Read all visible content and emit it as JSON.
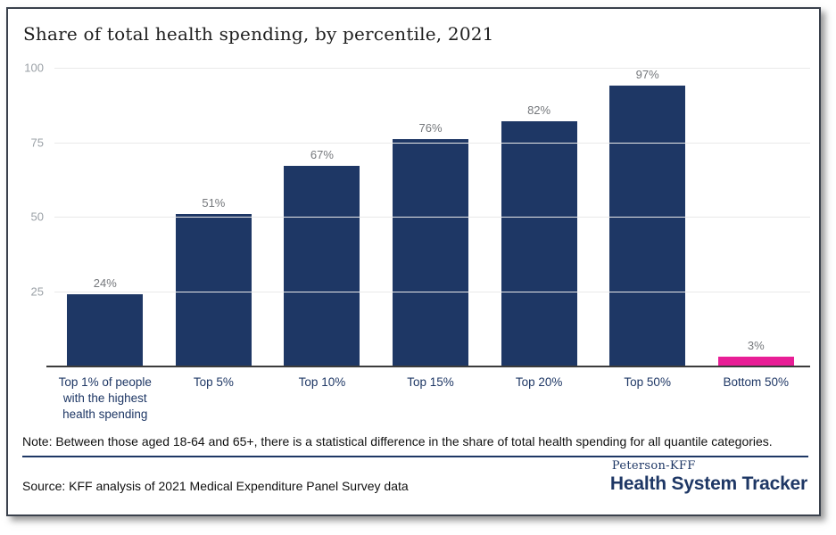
{
  "chart_data": {
    "type": "bar",
    "title": "Share of total health spending, by percentile, 2021",
    "categories": [
      "Top 1% of people with the highest health spending",
      "Top 5%",
      "Top 10%",
      "Top 15%",
      "Top 20%",
      "Top 50%",
      "Bottom 50%"
    ],
    "values": [
      24,
      51,
      67,
      76,
      82,
      97,
      3
    ],
    "value_labels": [
      "24%",
      "51%",
      "67%",
      "76%",
      "82%",
      "97%",
      "3%"
    ],
    "xlabel": "",
    "ylabel": "",
    "ylim": [
      0,
      100
    ],
    "yticks": [
      100,
      75,
      50,
      25
    ],
    "grid": "horizontal",
    "legend_position": "none",
    "bar_color_default": "#1e3765",
    "bar_color_highlight": "#e81e96",
    "highlight_index": 6
  },
  "note": "Note: Between those aged 18-64 and 65+, there is a statistical difference in the share of total health spending for all quantile categories.",
  "source": "Source: KFF analysis of 2021 Medical Expenditure Panel Survey data",
  "branding": {
    "line1": "Peterson-KFF",
    "line2": "Health System Tracker"
  },
  "colors": {
    "navy": "#1e3765",
    "pink": "#e81e96",
    "gridline": "#e9e9e9",
    "tick_label": "#9aa0a6",
    "value_label": "#75787c",
    "axis_line": "#3b3b3b"
  }
}
